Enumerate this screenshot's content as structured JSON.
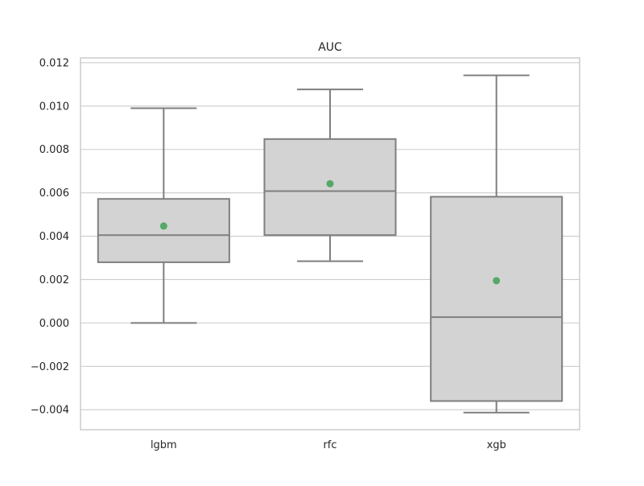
{
  "chart_data": {
    "type": "box",
    "title": "AUC",
    "xlabel": "",
    "ylabel": "",
    "categories": [
      "lgbm",
      "rfc",
      "xgb"
    ],
    "boxes": [
      {
        "category": "lgbm",
        "whisker_low": 0.0,
        "q1": 0.0028,
        "median": 0.00405,
        "q3": 0.00572,
        "whisker_high": 0.0099,
        "mean": 0.00447
      },
      {
        "category": "rfc",
        "whisker_low": 0.00285,
        "q1": 0.00405,
        "median": 0.00608,
        "q3": 0.00848,
        "whisker_high": 0.01077,
        "mean": 0.00642
      },
      {
        "category": "xgb",
        "whisker_low": -0.00413,
        "q1": -0.0036,
        "median": 0.00027,
        "q3": 0.00582,
        "whisker_high": 0.01142,
        "mean": 0.00195
      }
    ],
    "y_ticks": [
      "0.012",
      "0.010",
      "0.008",
      "0.006",
      "0.004",
      "0.002",
      "0.000",
      "−0.002",
      "−0.004"
    ],
    "y_tick_values": [
      0.012,
      0.01,
      0.008,
      0.006,
      0.004,
      0.002,
      0.0,
      -0.002,
      -0.004
    ],
    "ylim": [
      -0.00492,
      0.01222
    ],
    "grid": true,
    "legend": "none",
    "colors": {
      "box_fill": "#d3d3d3",
      "box_edge": "#7f7f7f",
      "mean_marker": "#55a868",
      "grid": "#cccccc",
      "frame": "#cccccc"
    }
  }
}
